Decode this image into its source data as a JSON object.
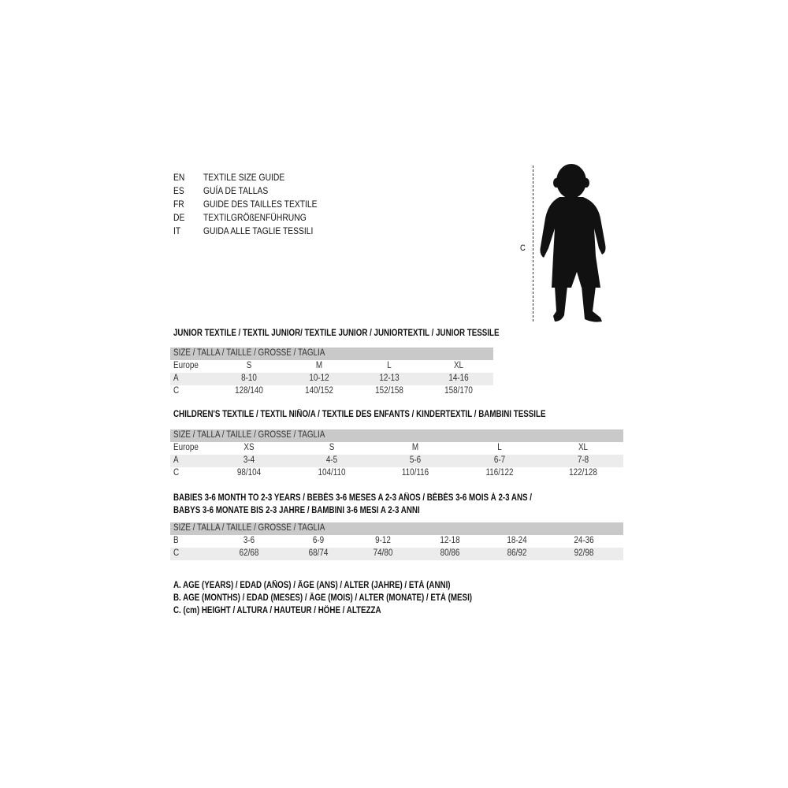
{
  "languages": [
    {
      "code": "EN",
      "title": "TEXTILE SIZE GUIDE"
    },
    {
      "code": "ES",
      "title": "GUÍA DE TALLAS"
    },
    {
      "code": "FR",
      "title": "GUIDE DES TAILLES TEXTILE"
    },
    {
      "code": "DE",
      "title": "TEXTILGRÖßENFÜHRUNG"
    },
    {
      "code": "IT",
      "title": "GUIDA ALLE TAGLIE TESSILI"
    }
  ],
  "figure": {
    "label": "C"
  },
  "junior": {
    "title": "JUNIOR TEXTILE / TEXTIL JUNIOR/ TEXTILE JUNIOR / JUNIORTEXTIL / JUNIOR TESSILE",
    "header": "SIZE / TALLA / TAILLE / GRÖSSE / TAGLIA",
    "rows": [
      {
        "label": "Europe",
        "cells": [
          "S",
          "M",
          "L",
          "XL"
        ]
      },
      {
        "label": "A",
        "cells": [
          "8-10",
          "10-12",
          "12-13",
          "14-16"
        ]
      },
      {
        "label": "C",
        "cells": [
          "128/140",
          "140/152",
          "152/158",
          "158/170"
        ]
      }
    ]
  },
  "children": {
    "title": "CHILDREN'S TEXTILE / TEXTIL NIÑO/A / TEXTILE DES ENFANTS / KINDERTEXTIL / BAMBINI TESSILE",
    "header": "SIZE / TALLA / TAILLE / GRÖSSE / TAGLIA",
    "rows": [
      {
        "label": "Europe",
        "cells": [
          "XS",
          "S",
          "M",
          "L",
          "XL"
        ]
      },
      {
        "label": "A",
        "cells": [
          "3-4",
          "4-5",
          "5-6",
          "6-7",
          "7-8"
        ]
      },
      {
        "label": "C",
        "cells": [
          "98/104",
          "104/110",
          "110/116",
          "116/122",
          "122/128"
        ]
      }
    ]
  },
  "babies": {
    "title_line1": "BABIES 3-6 MONTH TO 2-3 YEARS / BEBÉS 3-6 MESES A 2-3 AÑOS / BÉBÉS 3-6 MOIS À 2-3 ANS /",
    "title_line2": "BABYS 3-6 MONATE BIS 2-3 JAHRE / BAMBINI 3-6 MESI A 2-3 ANNI",
    "header": "SIZE / TALLA / TAILLE / GRÖSSE / TAGLIA",
    "rows": [
      {
        "label": "B",
        "cells": [
          "3-6",
          "6-9",
          "9-12",
          "12-18",
          "18-24",
          "24-36"
        ]
      },
      {
        "label": "C",
        "cells": [
          "62/68",
          "68/74",
          "74/80",
          "80/86",
          "86/92",
          "92/98"
        ]
      }
    ]
  },
  "legend": [
    "A. AGE (YEARS) / EDAD (AÑOS) / ÂGE (ANS) / ALTER (JAHRE) / ETÀ (ANNI)",
    "B. AGE (MONTHS) / EDAD (MESES) / ÂGE (MOIS) / ALTER (MONATE) / ETÀ (MESI)",
    "C. (cm) HEIGHT / ALTURA / HAUTEUR / HÖHE / ALTEZZA"
  ]
}
